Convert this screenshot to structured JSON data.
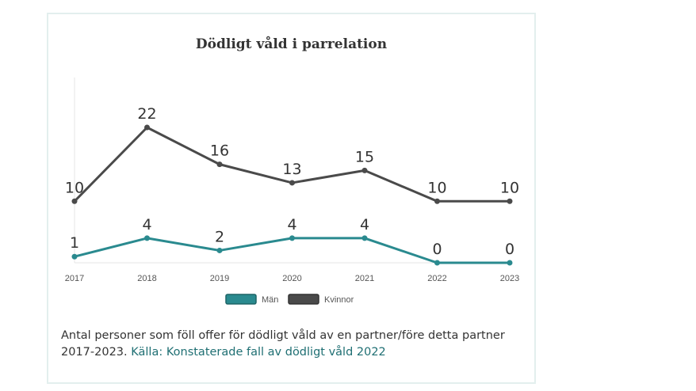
{
  "chart_data": {
    "type": "line",
    "title": "Dödligt våld i parrelation",
    "categories": [
      "2017",
      "2018",
      "2019",
      "2020",
      "2021",
      "2022",
      "2023"
    ],
    "series": [
      {
        "name": "Män",
        "values": [
          1,
          4,
          2,
          4,
          4,
          0,
          0
        ],
        "color": "#2a8a8f"
      },
      {
        "name": "Kvinnor",
        "values": [
          10,
          22,
          16,
          13,
          15,
          10,
          10
        ],
        "color": "#4a4a4a"
      }
    ],
    "ylim": [
      0,
      22
    ],
    "xlabel": "",
    "ylabel": "",
    "legend": "bottom-center"
  },
  "caption": {
    "text": "Antal personer som föll offer för dödligt våld av en partner/före detta partner 2017-2023.",
    "source_link": "Källa: Konstaterade fall av dödligt våld 2022"
  }
}
